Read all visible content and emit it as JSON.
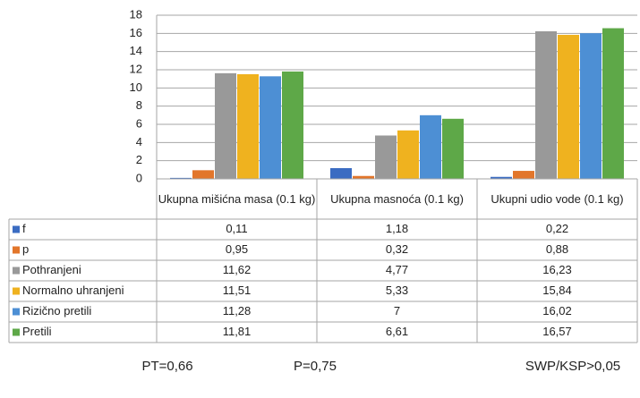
{
  "chart_data": {
    "type": "bar",
    "categories": [
      "Ukupna mišićna masa (0.1 kg)",
      "Ukupna masnoća (0.1 kg)",
      "Ukupni udio vode (0.1 kg)"
    ],
    "series": [
      {
        "name": "f",
        "color": "#3b6cc2",
        "values": [
          0.11,
          1.18,
          0.22
        ],
        "value_labels": [
          "0,11",
          "1,18",
          "0,22"
        ]
      },
      {
        "name": "p",
        "color": "#e2762b",
        "values": [
          0.95,
          0.32,
          0.88
        ],
        "value_labels": [
          "0,95",
          "0,32",
          "0,88"
        ]
      },
      {
        "name": "Pothranjeni",
        "color": "#999999",
        "values": [
          11.62,
          4.77,
          16.23
        ],
        "value_labels": [
          "11,62",
          "4,77",
          "16,23"
        ]
      },
      {
        "name": "Normalno uhranjeni",
        "color": "#efb21f",
        "values": [
          11.51,
          5.33,
          15.84
        ],
        "value_labels": [
          "11,51",
          "5,33",
          "15,84"
        ]
      },
      {
        "name": "Rizično pretili",
        "color": "#4d8fd4",
        "values": [
          11.28,
          7,
          16.02
        ],
        "value_labels": [
          "11,28",
          "7",
          "16,02"
        ]
      },
      {
        "name": "Pretili",
        "color": "#5ea848",
        "values": [
          11.81,
          6.61,
          16.57
        ],
        "value_labels": [
          "11,81",
          "6,61",
          "16,57"
        ]
      }
    ],
    "ylim": [
      0,
      18
    ],
    "yticks": [
      0,
      2,
      4,
      6,
      8,
      10,
      12,
      14,
      16,
      18
    ],
    "grid": true,
    "annotations": [
      "PT=0,66",
      "P=0,75",
      "SWP/KSP>0,05"
    ]
  }
}
